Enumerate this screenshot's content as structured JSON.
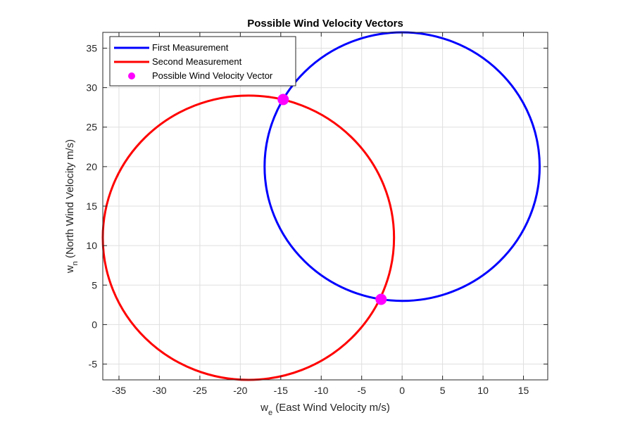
{
  "chart_data": {
    "type": "line",
    "title": "Possible Wind Velocity Vectors",
    "xlabel": {
      "main": "w",
      "sub": "e",
      "rest": " (East Wind Velocity m/s)"
    },
    "ylabel": {
      "main": "w",
      "sub": "n",
      "rest": " (North Wind Velocity m/s)"
    },
    "xlim": [
      -37,
      18
    ],
    "ylim": [
      -7,
      37
    ],
    "xticks": [
      -35,
      -30,
      -25,
      -20,
      -15,
      -10,
      -5,
      0,
      5,
      10,
      15
    ],
    "yticks": [
      -5,
      0,
      5,
      10,
      15,
      20,
      25,
      30,
      35
    ],
    "grid": true,
    "legend_position": "top-left",
    "series": [
      {
        "name": "First Measurement",
        "kind": "circle",
        "center": [
          0,
          20
        ],
        "radius": 17,
        "color": "#0000ff"
      },
      {
        "name": "Second Measurement",
        "kind": "circle",
        "center": [
          -19,
          11
        ],
        "radius": 18,
        "color": "#ff0000"
      },
      {
        "name": "Possible Wind Velocity Vector",
        "kind": "points",
        "color": "#ff00ff",
        "points": [
          [
            -14.7,
            28.5
          ],
          [
            -2.6,
            3.2
          ]
        ]
      }
    ]
  }
}
